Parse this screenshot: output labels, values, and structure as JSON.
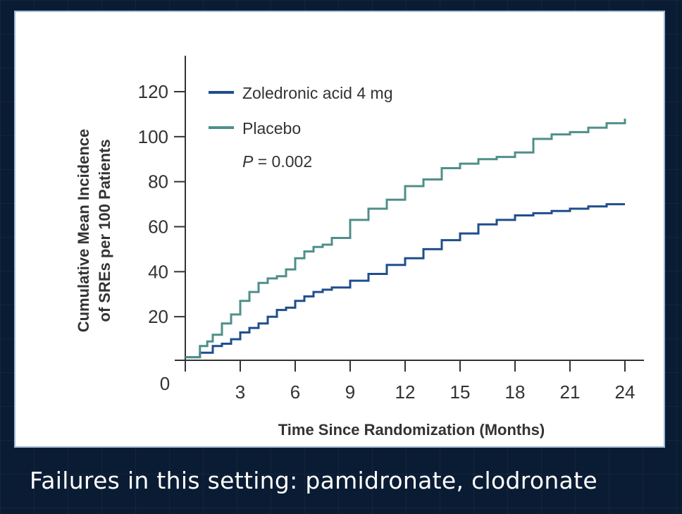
{
  "caption": "Failures in this setting: pamidronate, clodronate",
  "chart_data": {
    "type": "line",
    "step": true,
    "xlabel": "Time Since Randomization (Months)",
    "ylabel_lines": [
      "Cumulative Mean Incidence",
      "of SREs per 100 Patients"
    ],
    "xlim": [
      0,
      24
    ],
    "ylim": [
      0,
      130
    ],
    "xticks": [
      3,
      6,
      9,
      12,
      15,
      18,
      21,
      24
    ],
    "yticks": [
      20,
      40,
      60,
      80,
      100,
      120
    ],
    "origin_label": "0",
    "grid": false,
    "legend_position": "top-left",
    "annotation": {
      "prefix": "P",
      "text": " = 0.002"
    },
    "series": [
      {
        "name": "Zoledronic acid 4 mg",
        "color": "#1f4e8c",
        "x": [
          0,
          0.8,
          1.5,
          2,
          2.5,
          3,
          3.5,
          4,
          4.5,
          5,
          5.5,
          6,
          6.5,
          7,
          7.5,
          8,
          9,
          10,
          11,
          12,
          13,
          14,
          15,
          16,
          17,
          18,
          19,
          20,
          21,
          22,
          23,
          24
        ],
        "y": [
          2,
          4,
          7,
          8,
          10,
          13,
          15,
          17,
          20,
          23,
          24,
          27,
          29,
          31,
          32,
          33,
          36,
          39,
          43,
          46,
          50,
          54,
          57,
          61,
          63,
          65,
          66,
          67,
          68,
          69,
          70,
          70
        ]
      },
      {
        "name": "Placebo",
        "color": "#4f8f8a",
        "x": [
          0,
          0.8,
          1.2,
          1.5,
          2,
          2.5,
          3,
          3.5,
          4,
          4.5,
          5,
          5.5,
          6,
          6.5,
          7,
          7.5,
          8,
          9,
          10,
          11,
          12,
          13,
          14,
          15,
          16,
          17,
          18,
          19,
          20,
          21,
          22,
          23,
          24
        ],
        "y": [
          2,
          7,
          9,
          12,
          17,
          21,
          27,
          31,
          35,
          37,
          38,
          41,
          46,
          49,
          51,
          52,
          55,
          63,
          68,
          72,
          78,
          81,
          86,
          88,
          90,
          91,
          93,
          99,
          101,
          102,
          104,
          106,
          108
        ]
      }
    ]
  }
}
